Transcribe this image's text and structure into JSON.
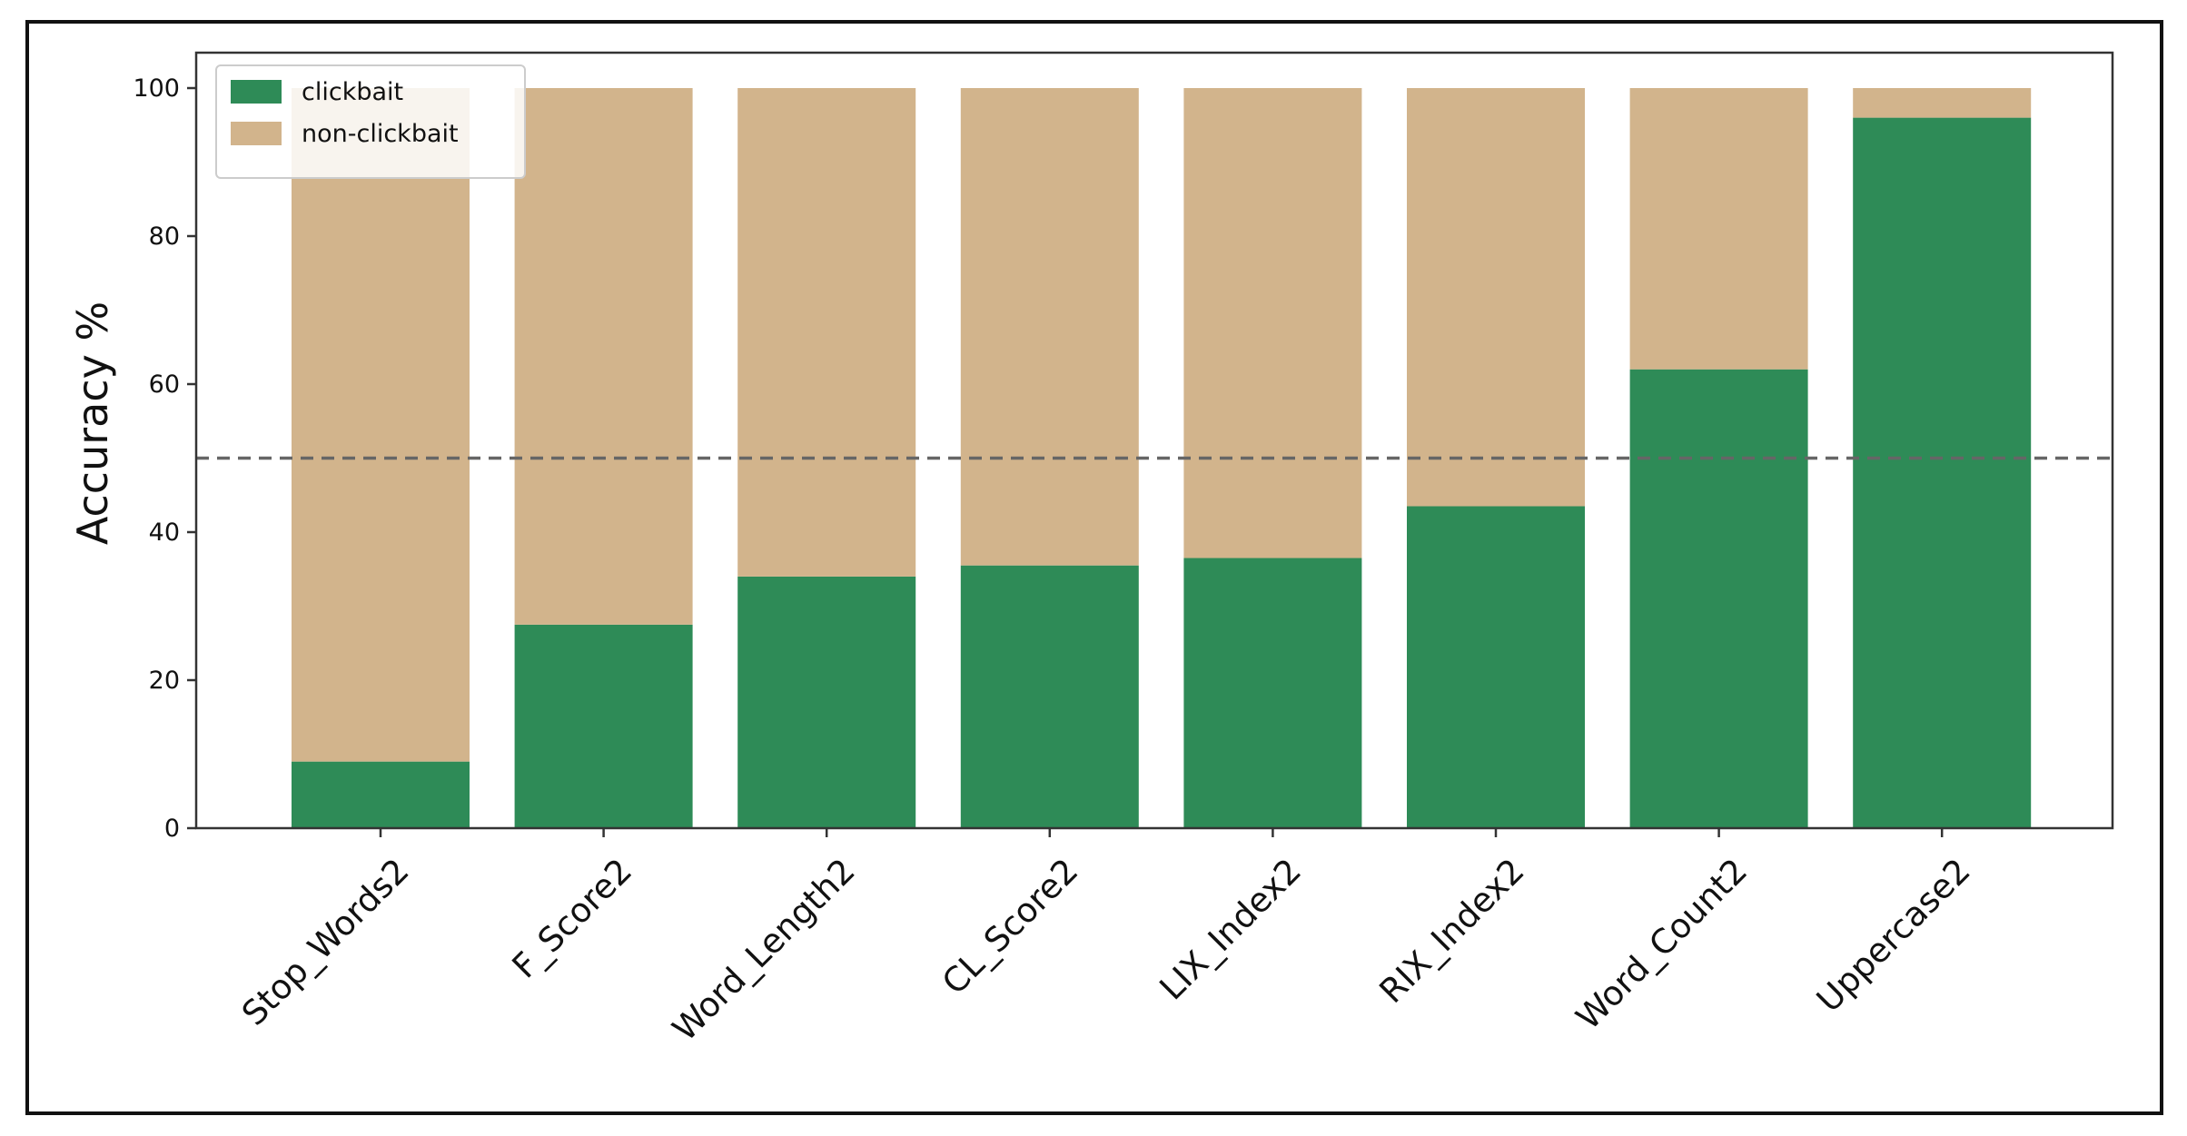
{
  "chart_data": {
    "type": "bar",
    "stacked": true,
    "title": "",
    "xlabel": "",
    "ylabel": "Accuracy %",
    "ylim": [
      0,
      100
    ],
    "yticks": [
      0,
      20,
      40,
      60,
      80,
      100
    ],
    "grid": false,
    "legend_position": "top-left",
    "reference_line": {
      "y": 50,
      "style": "dashed",
      "color": "#666666"
    },
    "categories": [
      "Stop_Words2",
      "F_Score2",
      "Word_Length2",
      "CL_Score2",
      "LIX_Index2",
      "RIX_Index2",
      "Word_Count2",
      "Uppercase2"
    ],
    "series": [
      {
        "name": "clickbait",
        "color": "#2e8b57",
        "values": [
          9,
          27.5,
          34,
          35.5,
          36.5,
          43.5,
          62,
          96
        ]
      },
      {
        "name": "non-clickbait",
        "color": "#d2b48c",
        "values": [
          91,
          72.5,
          66,
          64.5,
          63.5,
          56.5,
          38,
          4
        ]
      }
    ]
  }
}
